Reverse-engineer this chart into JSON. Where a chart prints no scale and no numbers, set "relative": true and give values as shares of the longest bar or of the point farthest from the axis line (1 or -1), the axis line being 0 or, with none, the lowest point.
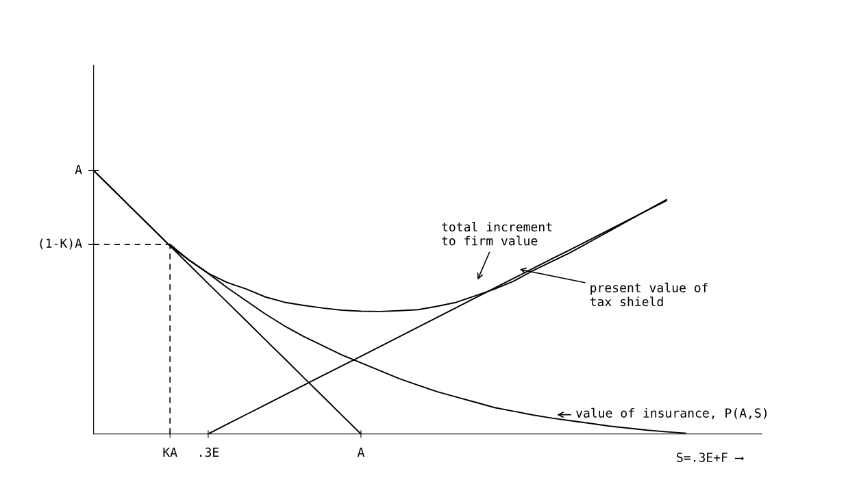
{
  "chart_data": {
    "type": "line",
    "relative": true,
    "xlabel": "S=.3E+F ⟶",
    "categories": [
      null,
      null,
      null,
      null,
      "KA",
      null,
      ".3E",
      null,
      null,
      null,
      null,
      null,
      null,
      null,
      "A",
      null,
      null,
      null,
      null,
      null,
      null,
      null,
      null,
      null,
      null,
      null,
      null,
      null,
      null,
      null,
      null,
      null,
      null,
      null,
      null,
      null
    ],
    "grid": false,
    "marker": "none",
    "series": [
      {
        "color": "#000000",
        "values": [
          1,
          0.929,
          0.857,
          0.786,
          0.714,
          0.643,
          0.571,
          0.5,
          0.429,
          0.357,
          0.286,
          0.214,
          0.143,
          0.071,
          0,
          null,
          null,
          null,
          null,
          null,
          null,
          null,
          null,
          null,
          null,
          null,
          null,
          null,
          null,
          null,
          null,
          null,
          null,
          null,
          null,
          null
        ]
      },
      {
        "color": "#000000",
        "values": [
          null,
          null,
          null,
          null,
          null,
          null,
          0,
          0.037,
          0.074,
          0.111,
          0.148,
          0.185,
          0.222,
          0.258,
          0.295,
          0.332,
          0.369,
          0.406,
          0.443,
          0.48,
          0.517,
          0.554,
          0.591,
          0.628,
          0.665,
          0.701,
          0.738,
          0.775,
          0.812,
          0.849,
          0.886,
          null,
          null,
          null,
          null,
          null
        ]
      },
      {
        "color": "#000000",
        "values": [
          null,
          null,
          null,
          null,
          0.72,
          0.66,
          0.61,
          0.575,
          0.55,
          0.52,
          0.5,
          0.488,
          0.478,
          0.47,
          0.466,
          0.465,
          0.468,
          0.472,
          0.485,
          0.5,
          0.525,
          0.55,
          0.58,
          0.62,
          0.655,
          0.69,
          0.73,
          0.77,
          0.81,
          0.85,
          0.89,
          null,
          null,
          null,
          null,
          null
        ]
      },
      {
        "color": "#000000",
        "values": [
          1,
          0.929,
          0.857,
          0.786,
          0.714,
          0.66,
          0.61,
          0.555,
          0.505,
          0.455,
          0.41,
          0.37,
          0.335,
          0.3,
          0.27,
          0.24,
          0.21,
          0.185,
          0.16,
          0.14,
          0.12,
          0.1,
          0.086,
          0.072,
          0.06,
          0.05,
          0.04,
          0.03,
          0.022,
          0.014,
          0.008,
          0.003,
          null,
          null,
          null,
          null
        ]
      }
    ],
    "ref_lines": [
      {
        "axis": "y",
        "value": 1,
        "label": "A"
      },
      {
        "axis": "y",
        "value": 0.72,
        "label": "(1-K)A",
        "line_style": "dashed"
      },
      {
        "axis": "x",
        "value": "KA",
        "line_style": "dashed"
      }
    ],
    "annotations": [
      "total increment\nto firm value",
      "present value of\ntax shield",
      "value of insurance, P(A,S)"
    ]
  }
}
